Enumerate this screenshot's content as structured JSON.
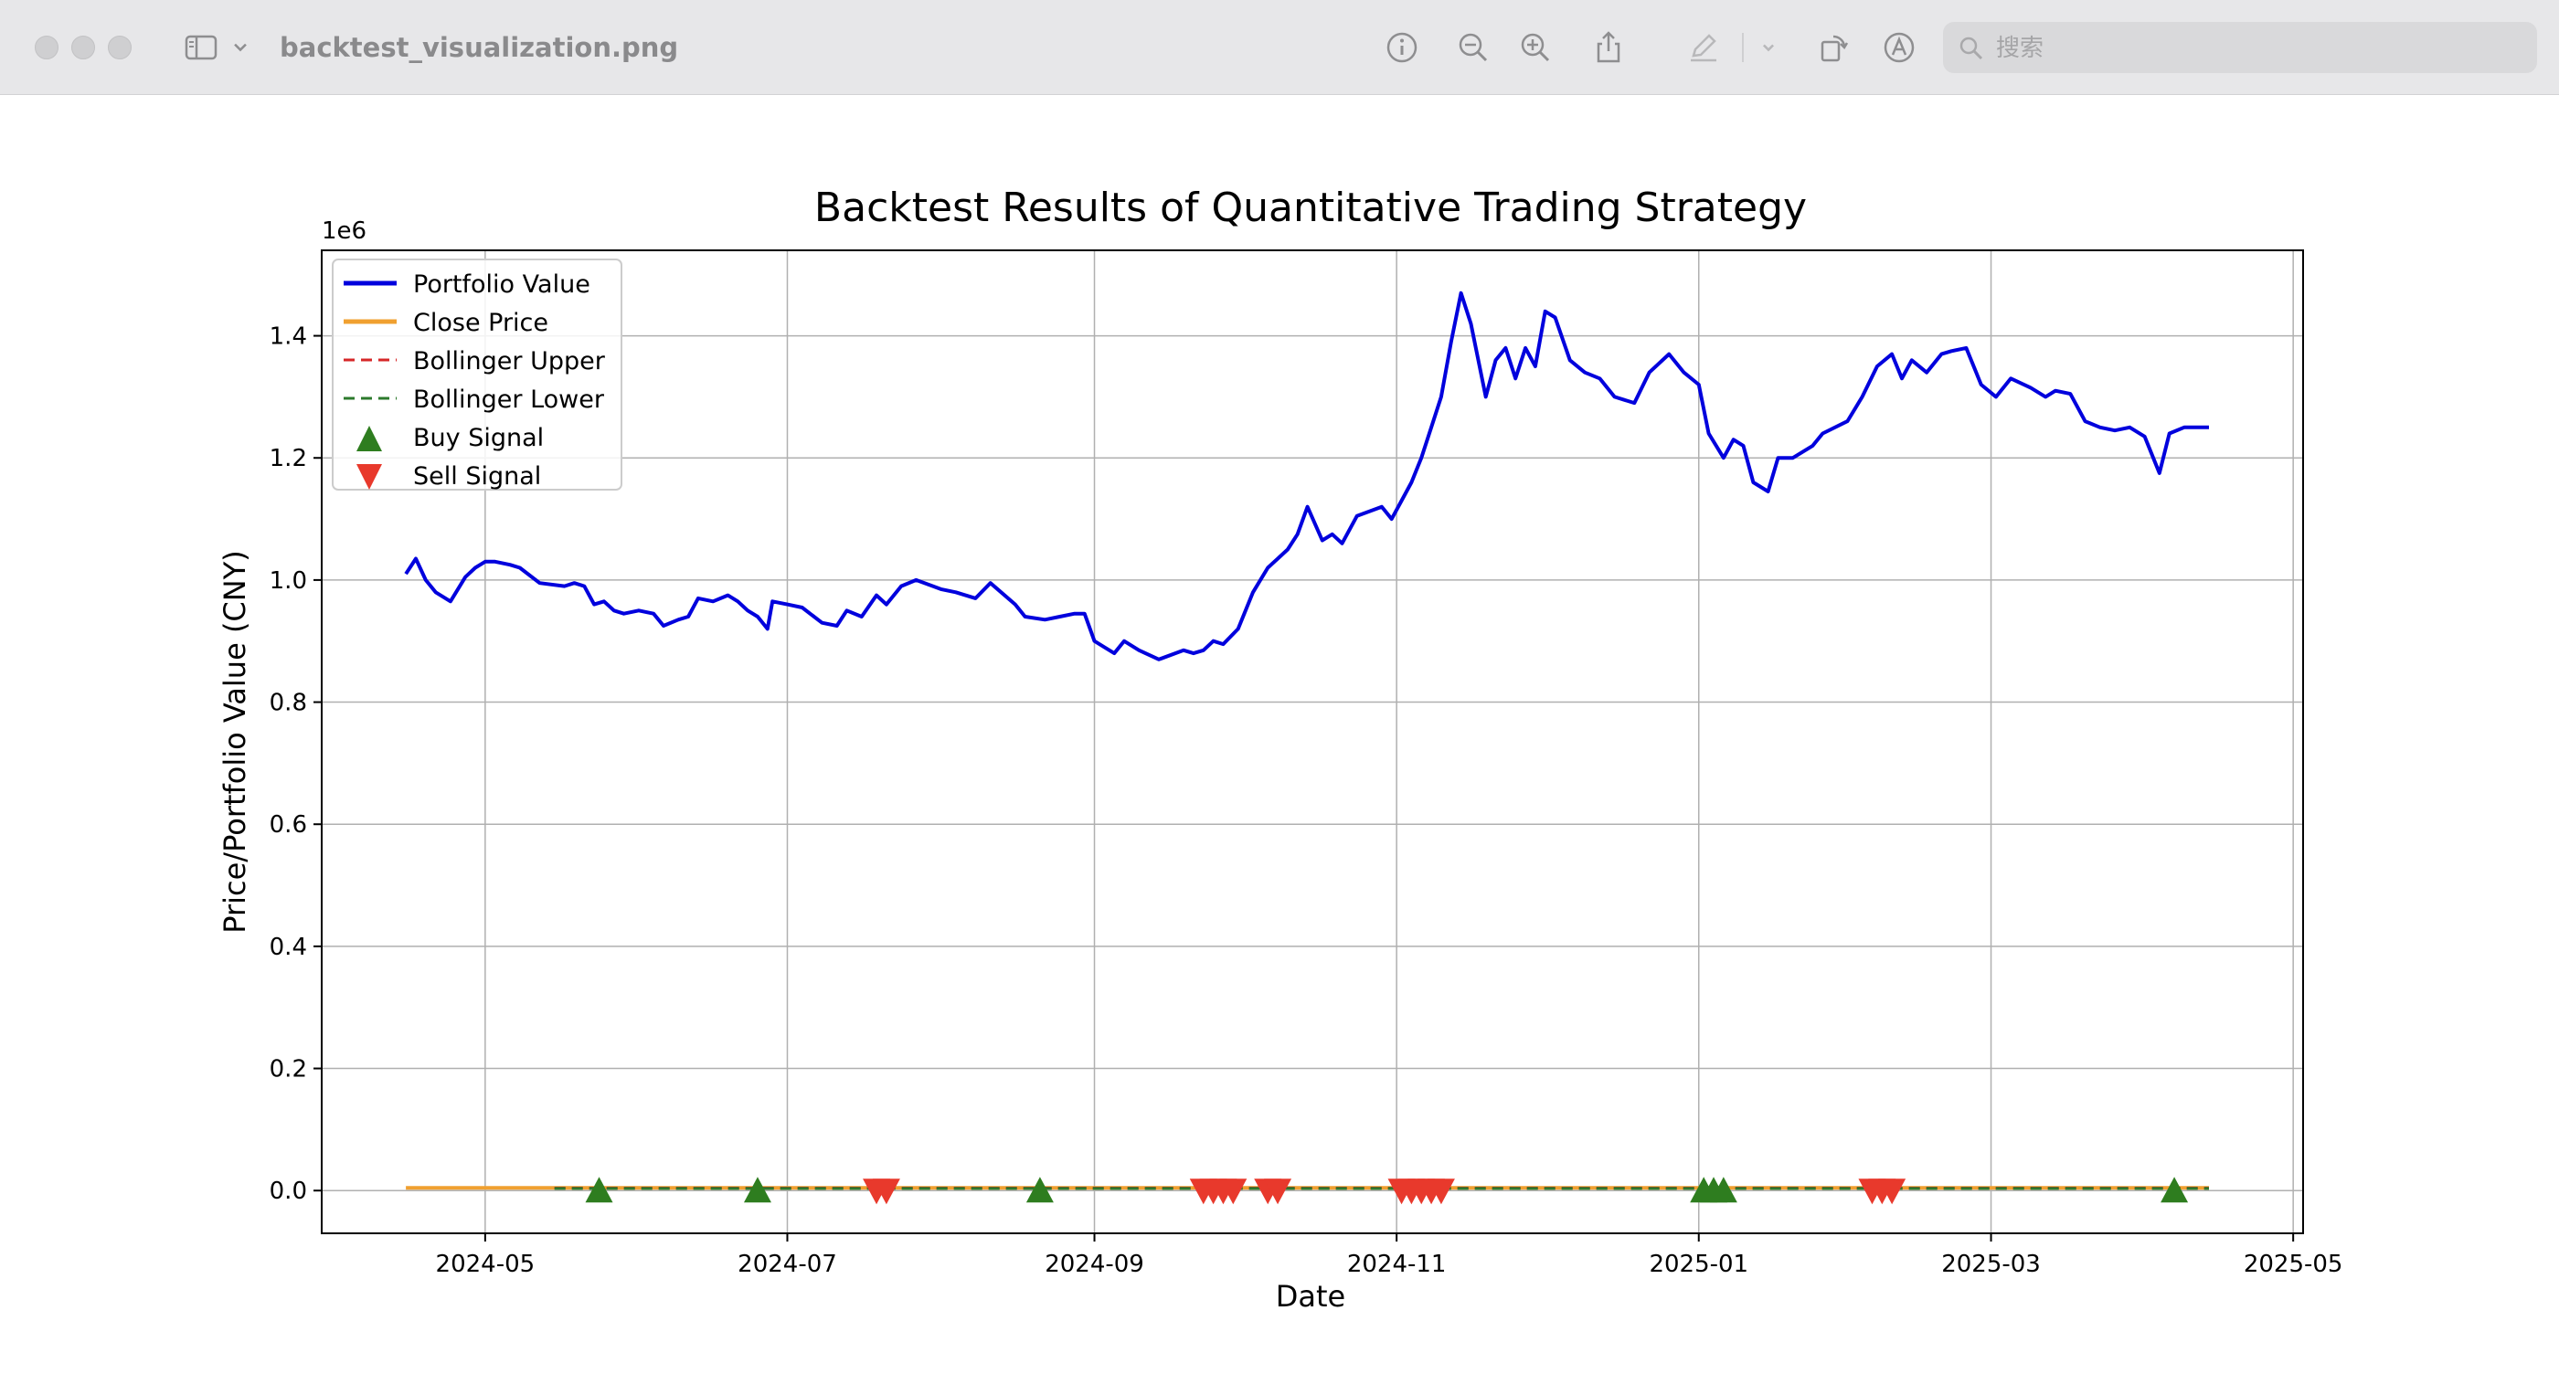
{
  "window": {
    "title": "backtest_visualization.png",
    "search_placeholder": "搜索",
    "toolbar_icons": [
      "sidebar-icon",
      "chevron-down-icon",
      "info-icon",
      "zoom-out-icon",
      "zoom-in-icon",
      "share-icon",
      "markup-pen-icon",
      "chevron-down-icon",
      "rotate-icon",
      "markup-circle-icon",
      "search-icon"
    ]
  },
  "colors": {
    "portfolio": "#0000dd",
    "close": "#f0a030",
    "upper": "#d62728",
    "lower": "#2c7a2c",
    "buy": "#2e7d1f",
    "sell": "#e8392c"
  },
  "chart_data": {
    "type": "line",
    "title": "Backtest Results of Quantitative Trading Strategy",
    "xlabel": "Date",
    "ylabel": "Price/Portfolio Value (CNY)",
    "y_offset_label": "1e6",
    "ylim": [
      -0.07,
      1.54
    ],
    "xlim": [
      "2024-03-29",
      "2025-05-03"
    ],
    "y_ticks": [
      0.0,
      0.2,
      0.4,
      0.6,
      0.8,
      1.0,
      1.2,
      1.4
    ],
    "y_tick_labels": [
      "0.0",
      "0.2",
      "0.4",
      "0.6",
      "0.8",
      "1.0",
      "1.2",
      "1.4"
    ],
    "x_ticks": [
      "2024-05-01",
      "2024-07-01",
      "2024-09-01",
      "2024-11-01",
      "2025-01-01",
      "2025-03-01",
      "2025-05-01"
    ],
    "x_tick_labels": [
      "2024-05",
      "2024-07",
      "2024-09",
      "2024-11",
      "2025-01",
      "2025-03",
      "2025-05"
    ],
    "grid": true,
    "legend_position": "top-left",
    "legend": [
      "Portfolio Value",
      "Close Price",
      "Bollinger Upper",
      "Bollinger Lower",
      "Buy Signal",
      "Sell Signal"
    ],
    "series": [
      {
        "name": "Portfolio Value",
        "x": [
          "2024-04-15",
          "2024-04-17",
          "2024-04-19",
          "2024-04-21",
          "2024-04-24",
          "2024-04-27",
          "2024-04-29",
          "2024-05-01",
          "2024-05-03",
          "2024-05-06",
          "2024-05-08",
          "2024-05-12",
          "2024-05-17",
          "2024-05-19",
          "2024-05-21",
          "2024-05-23",
          "2024-05-25",
          "2024-05-27",
          "2024-05-29",
          "2024-06-01",
          "2024-06-04",
          "2024-06-06",
          "2024-06-09",
          "2024-06-11",
          "2024-06-13",
          "2024-06-16",
          "2024-06-19",
          "2024-06-21",
          "2024-06-23",
          "2024-06-25",
          "2024-06-27",
          "2024-06-28",
          "2024-07-01",
          "2024-07-04",
          "2024-07-08",
          "2024-07-11",
          "2024-07-13",
          "2024-07-16",
          "2024-07-19",
          "2024-07-21",
          "2024-07-24",
          "2024-07-27",
          "2024-08-01",
          "2024-08-04",
          "2024-08-08",
          "2024-08-11",
          "2024-08-16",
          "2024-08-18",
          "2024-08-22",
          "2024-08-25",
          "2024-08-28",
          "2024-08-30",
          "2024-09-01",
          "2024-09-03",
          "2024-09-05",
          "2024-09-07",
          "2024-09-10",
          "2024-09-14",
          "2024-09-19",
          "2024-09-21",
          "2024-09-23",
          "2024-09-25",
          "2024-09-27",
          "2024-09-30",
          "2024-10-03",
          "2024-10-06",
          "2024-10-10",
          "2024-10-12",
          "2024-10-14",
          "2024-10-17",
          "2024-10-19",
          "2024-10-21",
          "2024-10-24",
          "2024-10-29",
          "2024-10-31",
          "2024-11-02",
          "2024-11-04",
          "2024-11-06",
          "2024-11-08",
          "2024-11-10",
          "2024-11-12",
          "2024-11-14",
          "2024-11-16",
          "2024-11-19",
          "2024-11-21",
          "2024-11-23",
          "2024-11-25",
          "2024-11-27",
          "2024-11-29",
          "2024-12-01",
          "2024-12-03",
          "2024-12-06",
          "2024-12-09",
          "2024-12-12",
          "2024-12-15",
          "2024-12-19",
          "2024-12-22",
          "2024-12-26",
          "2024-12-29",
          "2025-01-01",
          "2025-01-03",
          "2025-01-06",
          "2025-01-08",
          "2025-01-10",
          "2025-01-12",
          "2025-01-15",
          "2025-01-17",
          "2025-01-20",
          "2025-01-24",
          "2025-01-26",
          "2025-01-31",
          "2025-02-03",
          "2025-02-06",
          "2025-02-09",
          "2025-02-11",
          "2025-02-13",
          "2025-02-16",
          "2025-02-19",
          "2025-02-21",
          "2025-02-24",
          "2025-02-27",
          "2025-03-02",
          "2025-03-05",
          "2025-03-09",
          "2025-03-12",
          "2025-03-14",
          "2025-03-17",
          "2025-03-20",
          "2025-03-23",
          "2025-03-26",
          "2025-03-29",
          "2025-04-01",
          "2025-04-04",
          "2025-04-06",
          "2025-04-09",
          "2025-04-12",
          "2025-04-14"
        ],
        "values": [
          1.01,
          1.035,
          1.0,
          0.98,
          0.965,
          1.005,
          1.02,
          1.03,
          1.03,
          1.025,
          1.02,
          0.995,
          0.99,
          0.995,
          0.99,
          0.96,
          0.965,
          0.95,
          0.945,
          0.95,
          0.945,
          0.925,
          0.935,
          0.94,
          0.97,
          0.965,
          0.975,
          0.965,
          0.95,
          0.94,
          0.92,
          0.965,
          0.96,
          0.955,
          0.93,
          0.925,
          0.95,
          0.94,
          0.975,
          0.96,
          0.99,
          1.0,
          0.985,
          0.98,
          0.97,
          0.995,
          0.96,
          0.94,
          0.935,
          0.94,
          0.945,
          0.945,
          0.9,
          0.89,
          0.88,
          0.9,
          0.885,
          0.87,
          0.885,
          0.88,
          0.885,
          0.9,
          0.895,
          0.92,
          0.98,
          1.02,
          1.05,
          1.075,
          1.12,
          1.065,
          1.075,
          1.06,
          1.105,
          1.12,
          1.1,
          1.13,
          1.16,
          1.2,
          1.25,
          1.3,
          1.39,
          1.47,
          1.42,
          1.3,
          1.36,
          1.38,
          1.33,
          1.38,
          1.35,
          1.44,
          1.43,
          1.36,
          1.34,
          1.33,
          1.3,
          1.29,
          1.34,
          1.37,
          1.34,
          1.32,
          1.24,
          1.2,
          1.23,
          1.22,
          1.16,
          1.145,
          1.2,
          1.2,
          1.22,
          1.24,
          1.26,
          1.3,
          1.35,
          1.37,
          1.33,
          1.36,
          1.34,
          1.37,
          1.375,
          1.38,
          1.32,
          1.3,
          1.33,
          1.315,
          1.3,
          1.31,
          1.305,
          1.26,
          1.25,
          1.245,
          1.25,
          1.235,
          1.175,
          1.24,
          1.25,
          1.25,
          1.25
        ]
      },
      {
        "name": "Close Price",
        "x": [
          "2024-04-15",
          "2025-04-14"
        ],
        "values": [
          0.0045,
          0.0045
        ]
      },
      {
        "name": "Bollinger Upper",
        "x": [
          "2024-05-15",
          "2025-04-14"
        ],
        "values": [
          0.004,
          0.004
        ]
      },
      {
        "name": "Bollinger Lower",
        "x": [
          "2024-05-15",
          "2025-04-14"
        ],
        "values": [
          0.0035,
          0.0035
        ]
      },
      {
        "name": "Buy Signal",
        "x": [
          "2024-05-24",
          "2024-06-25",
          "2024-08-21",
          "2025-01-02",
          "2025-01-04",
          "2025-01-06",
          "2025-04-07"
        ],
        "values": [
          0.0,
          0.0,
          0.0,
          0.0,
          0.0,
          0.0,
          0.0
        ]
      },
      {
        "name": "Sell Signal",
        "x": [
          "2024-07-19",
          "2024-07-21",
          "2024-09-23",
          "2024-09-25",
          "2024-09-27",
          "2024-09-29",
          "2024-10-06",
          "2024-10-08",
          "2024-11-02",
          "2024-11-04",
          "2024-11-06",
          "2024-11-08",
          "2024-11-10",
          "2025-02-05",
          "2025-02-07",
          "2025-02-09"
        ],
        "values": [
          0.0,
          0.0,
          0.0,
          0.0,
          0.0,
          0.0,
          0.0,
          0.0,
          0.0,
          0.0,
          0.0,
          0.0,
          0.0,
          0.0,
          0.0,
          0.0
        ]
      }
    ]
  }
}
